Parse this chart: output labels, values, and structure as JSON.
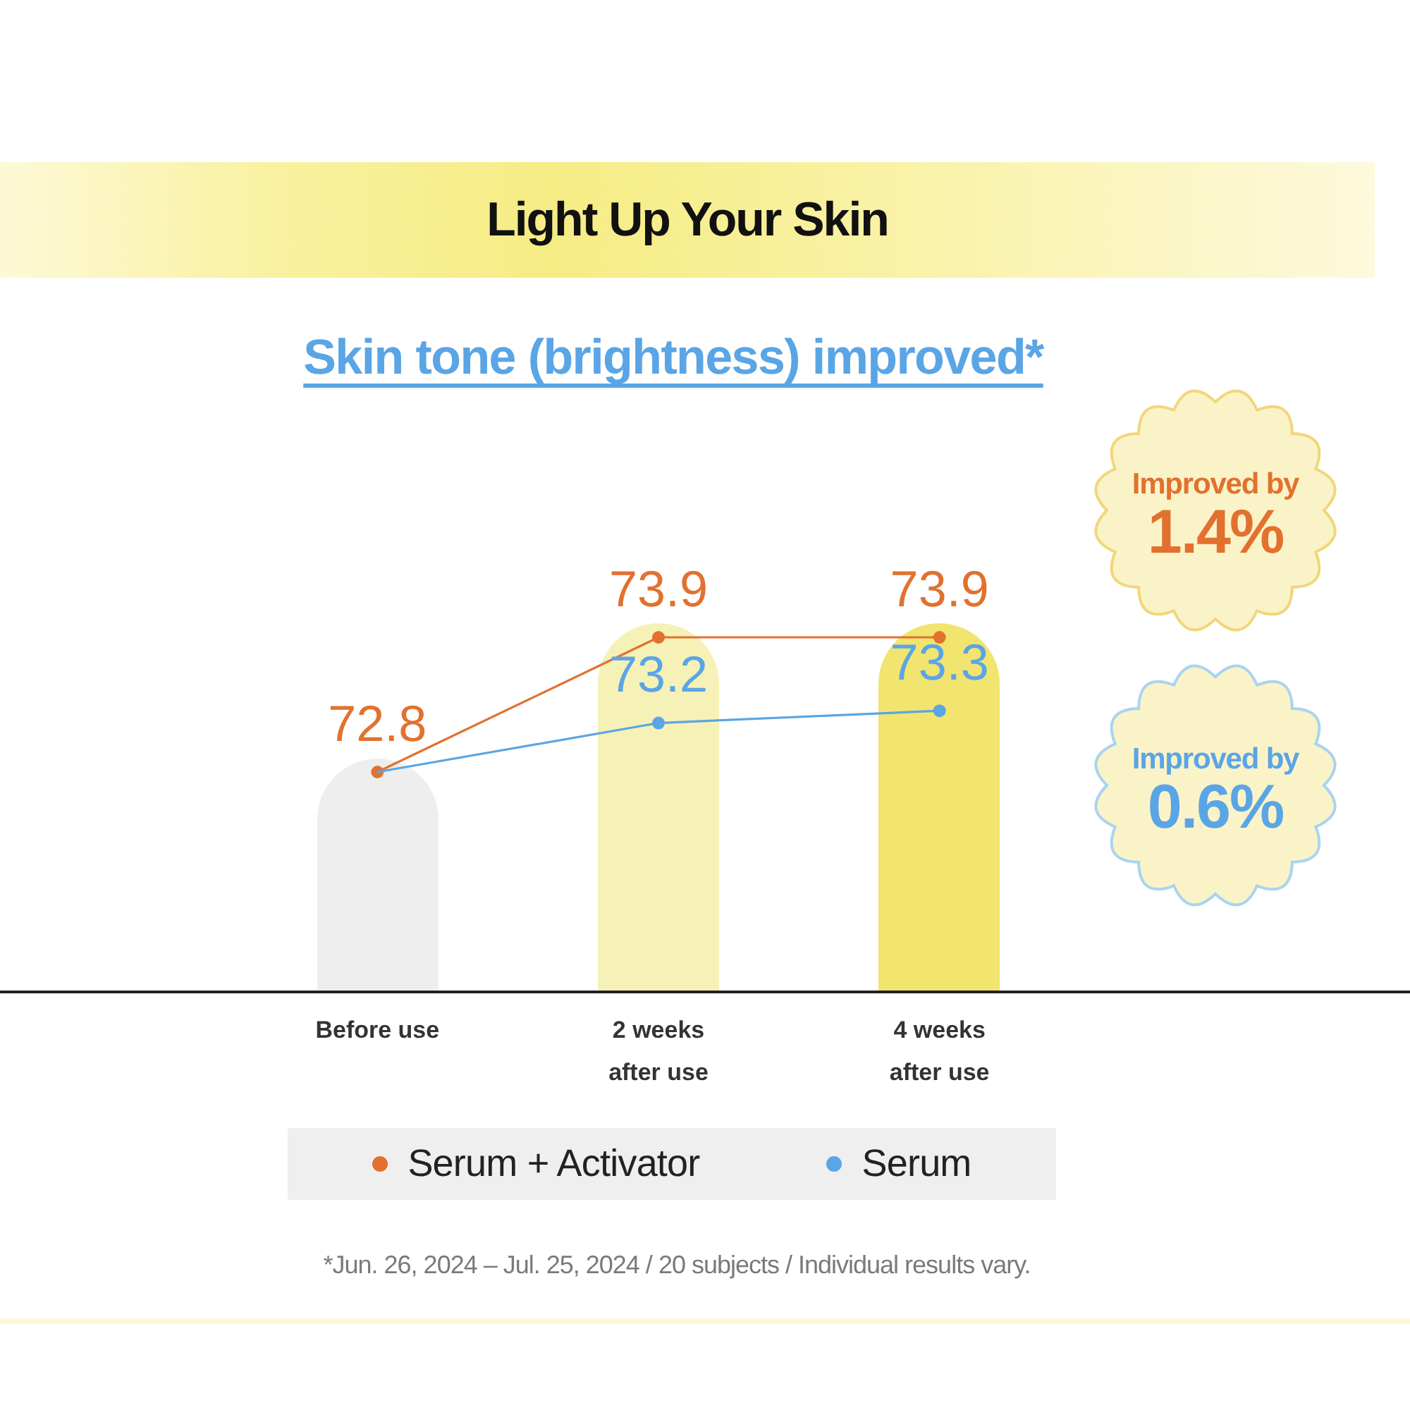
{
  "chart_data": {
    "type": "line",
    "title": "Light Up Your Skin",
    "subtitle": "Skin tone (brightness) improved*",
    "categories": [
      "Before use",
      "2 weeks after use",
      "4 weeks after use"
    ],
    "series": [
      {
        "name": "Serum + Activator",
        "color": "#e2712f",
        "values": [
          72.8,
          73.9,
          73.9
        ],
        "value_labels": [
          "72.8",
          "73.9",
          "73.9"
        ]
      },
      {
        "name": "Serum",
        "color": "#5aa5e5",
        "values": [
          72.8,
          73.2,
          73.3
        ],
        "value_labels": [
          null,
          "73.2",
          "73.3"
        ]
      }
    ],
    "tick_labels": "x",
    "marker": "circle",
    "line_style": "solid",
    "legend": "bottom",
    "annotations": [
      "Improved by 1.4%",
      "Improved by 0.6%",
      "*Jun. 26, 2024 – Jul. 25, 2024 / 20 subjects / Individual results vary."
    ]
  }
}
